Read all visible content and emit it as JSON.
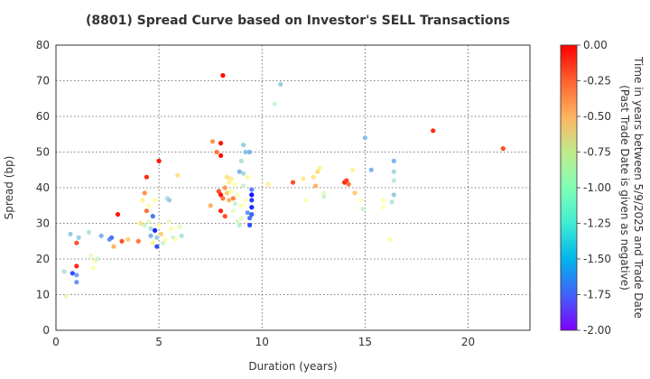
{
  "chart_data": {
    "type": "scatter",
    "title": "(8801)   Spread Curve based on Investor's SELL Transactions",
    "xlabel": "Duration (years)",
    "ylabel": "Spread (bp)",
    "xlim": [
      0,
      23
    ],
    "ylim": [
      0,
      80
    ],
    "x_ticks": [
      "0",
      "5",
      "10",
      "15",
      "20"
    ],
    "y_ticks": [
      "0",
      "10",
      "20",
      "30",
      "40",
      "50",
      "60",
      "70",
      "80"
    ],
    "grid": true,
    "colorbar": {
      "label_line1": "Time in years between 5/9/2025 and Trade Date",
      "label_line2": "(Past Trade Date is given as negative)",
      "range": [
        -2.0,
        0.0
      ],
      "ticks": [
        "0.00",
        "-0.25",
        "-0.50",
        "-0.75",
        "-1.00",
        "-1.25",
        "-1.50",
        "-1.75",
        "-2.00"
      ],
      "colormap": "rainbow"
    },
    "points": [
      [
        0.4,
        16.5,
        -1.3
      ],
      [
        0.5,
        9.5,
        -1.1
      ],
      [
        0.7,
        27.0,
        -1.4
      ],
      [
        0.8,
        16.0,
        -1.8
      ],
      [
        1.0,
        18.0,
        -0.1
      ],
      [
        1.0,
        24.5,
        -0.2
      ],
      [
        1.0,
        13.5,
        -1.6
      ],
      [
        1.0,
        15.5,
        -1.55
      ],
      [
        1.1,
        26.0,
        -1.4
      ],
      [
        1.6,
        27.5,
        -1.3
      ],
      [
        1.7,
        21.0,
        -1.1
      ],
      [
        1.8,
        17.5,
        -1.0
      ],
      [
        1.9,
        19.5,
        -0.9
      ],
      [
        2.0,
        20.0,
        -1.2
      ],
      [
        2.2,
        26.5,
        -1.5
      ],
      [
        2.6,
        25.5,
        -1.6
      ],
      [
        2.7,
        26.0,
        -1.7
      ],
      [
        2.8,
        23.5,
        -0.5
      ],
      [
        3.0,
        32.5,
        -0.05
      ],
      [
        3.2,
        25.0,
        -0.2
      ],
      [
        3.5,
        25.5,
        -0.6
      ],
      [
        4.0,
        25.0,
        -0.3
      ],
      [
        4.1,
        30.0,
        -0.7
      ],
      [
        4.2,
        36.5,
        -0.8
      ],
      [
        4.3,
        38.5,
        -0.4
      ],
      [
        4.3,
        29.5,
        -1.2
      ],
      [
        4.4,
        43.0,
        -0.1
      ],
      [
        4.4,
        33.5,
        -0.3
      ],
      [
        4.5,
        35.0,
        -1.0
      ],
      [
        4.5,
        30.5,
        -1.1
      ],
      [
        4.6,
        28.5,
        -1.3
      ],
      [
        4.6,
        26.5,
        -1.5
      ],
      [
        4.7,
        32.0,
        -1.7
      ],
      [
        4.7,
        24.5,
        -0.8
      ],
      [
        4.8,
        36.5,
        -0.9
      ],
      [
        4.8,
        28.0,
        -1.9
      ],
      [
        4.9,
        23.5,
        -1.8
      ],
      [
        4.9,
        26.0,
        -1.4
      ],
      [
        5.0,
        47.5,
        -0.05
      ],
      [
        5.0,
        29.5,
        -1.0
      ],
      [
        5.1,
        27.0,
        -0.6
      ],
      [
        5.2,
        24.5,
        -1.2
      ],
      [
        5.3,
        25.5,
        -1.0
      ],
      [
        5.4,
        37.0,
        -1.3
      ],
      [
        5.5,
        36.5,
        -1.4
      ],
      [
        5.5,
        30.5,
        -1.1
      ],
      [
        5.6,
        28.5,
        -0.9
      ],
      [
        5.7,
        26.0,
        -1.2
      ],
      [
        5.8,
        25.5,
        -1.0
      ],
      [
        5.9,
        43.5,
        -0.7
      ],
      [
        6.0,
        29.0,
        -1.1
      ],
      [
        6.1,
        26.5,
        -1.3
      ],
      [
        7.5,
        35.0,
        -0.5
      ],
      [
        7.6,
        53.0,
        -0.4
      ],
      [
        7.8,
        50.0,
        -0.3
      ],
      [
        7.9,
        39.0,
        -0.2
      ],
      [
        8.0,
        33.5,
        -0.1
      ],
      [
        8.0,
        38.0,
        -0.05
      ],
      [
        8.0,
        52.5,
        -0.05
      ],
      [
        8.0,
        49.0,
        -0.02
      ],
      [
        8.1,
        71.5,
        -0.02
      ],
      [
        8.1,
        37.0,
        -0.3
      ],
      [
        8.2,
        40.0,
        -0.4
      ],
      [
        8.2,
        32.0,
        -0.2
      ],
      [
        8.3,
        43.0,
        -0.7
      ],
      [
        8.3,
        38.5,
        -0.6
      ],
      [
        8.4,
        36.5,
        -0.5
      ],
      [
        8.4,
        41.5,
        -0.8
      ],
      [
        8.5,
        39.0,
        -0.9
      ],
      [
        8.5,
        42.5,
        -0.75
      ],
      [
        8.6,
        37.0,
        -0.35
      ],
      [
        8.6,
        33.5,
        -1.1
      ],
      [
        8.7,
        41.0,
        -1.0
      ],
      [
        8.7,
        35.5,
        -1.2
      ],
      [
        8.8,
        38.0,
        -1.05
      ],
      [
        8.8,
        30.5,
        -1.15
      ],
      [
        8.9,
        44.5,
        -1.5
      ],
      [
        8.9,
        29.5,
        -1.25
      ],
      [
        9.0,
        47.5,
        -1.3
      ],
      [
        9.0,
        31.5,
        -1.1
      ],
      [
        9.0,
        35.0,
        -0.95
      ],
      [
        9.1,
        52.0,
        -1.4
      ],
      [
        9.1,
        44.0,
        -1.35
      ],
      [
        9.1,
        40.5,
        -1.2
      ],
      [
        9.2,
        50.0,
        -1.45
      ],
      [
        9.2,
        36.5,
        -1.0
      ],
      [
        9.3,
        43.0,
        -0.85
      ],
      [
        9.3,
        33.0,
        -1.6
      ],
      [
        9.4,
        50.0,
        -1.5
      ],
      [
        9.4,
        29.5,
        -1.8
      ],
      [
        9.4,
        31.5,
        -1.7
      ],
      [
        9.5,
        34.5,
        -1.9
      ],
      [
        9.5,
        36.5,
        -1.85
      ],
      [
        9.5,
        32.5,
        -1.75
      ],
      [
        9.5,
        38.0,
        -1.95
      ],
      [
        9.5,
        39.5,
        -1.65
      ],
      [
        10.3,
        41.0,
        -0.8
      ],
      [
        10.6,
        63.5,
        -1.2
      ],
      [
        10.9,
        69.0,
        -1.4
      ],
      [
        11.5,
        41.5,
        -0.2
      ],
      [
        12.0,
        42.5,
        -0.75
      ],
      [
        12.1,
        36.5,
        -1.0
      ],
      [
        12.5,
        43.0,
        -0.7
      ],
      [
        12.6,
        40.5,
        -0.5
      ],
      [
        12.7,
        44.5,
        -0.65
      ],
      [
        12.8,
        45.5,
        -0.8
      ],
      [
        13.0,
        38.5,
        -1.1
      ],
      [
        13.0,
        37.5,
        -1.2
      ],
      [
        14.0,
        41.5,
        -0.1
      ],
      [
        14.1,
        42.0,
        -0.15
      ],
      [
        14.2,
        41.0,
        -0.3
      ],
      [
        14.4,
        45.0,
        -0.8
      ],
      [
        14.5,
        38.5,
        -0.6
      ],
      [
        14.8,
        36.5,
        -1.0
      ],
      [
        14.9,
        34.0,
        -1.2
      ],
      [
        15.0,
        54.0,
        -1.45
      ],
      [
        15.3,
        45.0,
        -1.5
      ],
      [
        15.9,
        36.5,
        -0.9
      ],
      [
        15.9,
        34.5,
        -1.0
      ],
      [
        16.2,
        25.5,
        -0.9
      ],
      [
        16.3,
        36.0,
        -1.3
      ],
      [
        16.4,
        47.5,
        -1.5
      ],
      [
        16.4,
        44.5,
        -1.35
      ],
      [
        16.4,
        42.0,
        -1.25
      ],
      [
        16.4,
        38.0,
        -1.4
      ],
      [
        18.3,
        56.0,
        -0.1
      ],
      [
        21.7,
        51.0,
        -0.2
      ]
    ]
  }
}
